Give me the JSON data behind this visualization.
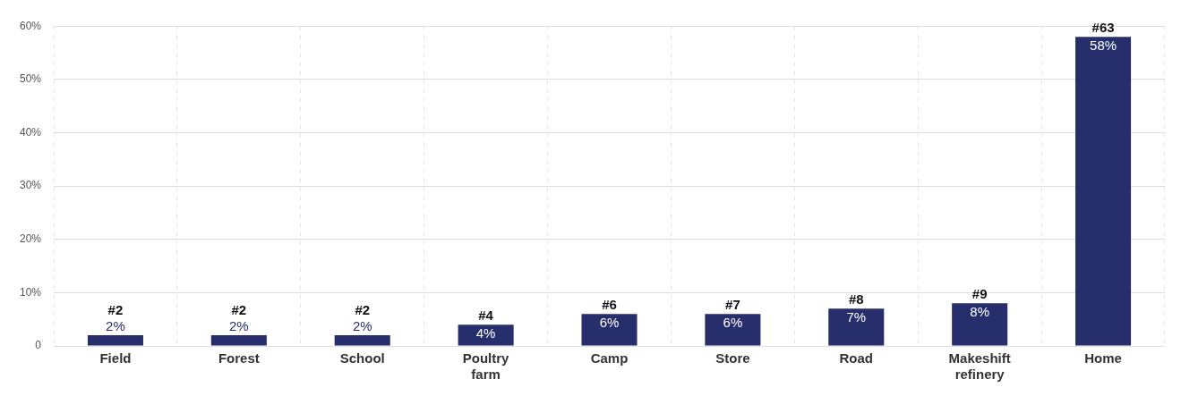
{
  "chart_data": {
    "type": "bar",
    "categories": [
      "Field",
      "Forest",
      "School",
      "Poultry farm",
      "Camp",
      "Store",
      "Road",
      "Makeshift refinery",
      "Home"
    ],
    "values": [
      2,
      2,
      2,
      4,
      6,
      6,
      7,
      8,
      58
    ],
    "color": "#262f6b",
    "value_labels": [
      "2%",
      "2%",
      "2%",
      "4%",
      "6%",
      "6%",
      "7%",
      "8%",
      "58%"
    ],
    "annotations": [
      {
        "text": "#2",
        "x": "Field",
        "y": 2
      },
      {
        "text": "#2",
        "x": "Forest",
        "y": 2
      },
      {
        "text": "#2",
        "x": "School",
        "y": 2
      },
      {
        "text": "#4",
        "x": "Poultry farm",
        "y": 4
      },
      {
        "text": "#6",
        "x": "Camp",
        "y": 6
      },
      {
        "text": "#7",
        "x": "Store",
        "y": 6
      },
      {
        "text": "#8",
        "x": "Road",
        "y": 7
      },
      {
        "text": "#9",
        "x": "Makeshift refinery",
        "y": 8
      },
      {
        "text": "#63",
        "x": "Home",
        "y": 58
      }
    ],
    "ylim": [
      0,
      60
    ],
    "yticks": [
      0,
      {
        "value": 10,
        "label": "10%"
      },
      {
        "value": 20,
        "label": "20%"
      },
      {
        "value": 30,
        "label": "30%"
      },
      {
        "value": 40,
        "label": "40%"
      },
      {
        "value": 50,
        "label": "50%"
      },
      {
        "value": 60,
        "label": "60%"
      }
    ],
    "grid": true,
    "legend": false
  }
}
